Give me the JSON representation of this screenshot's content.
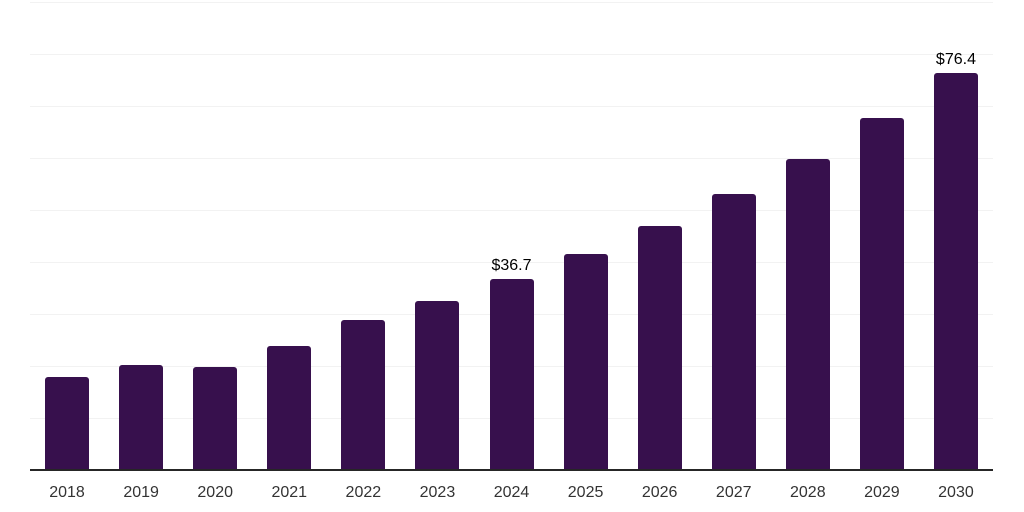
{
  "chart_data": {
    "type": "bar",
    "title": "",
    "xlabel": "",
    "ylabel": "",
    "categories": [
      "2018",
      "2019",
      "2020",
      "2021",
      "2022",
      "2023",
      "2024",
      "2025",
      "2026",
      "2027",
      "2028",
      "2029",
      "2030"
    ],
    "values": [
      17.8,
      20.2,
      19.9,
      23.9,
      28.9,
      32.5,
      36.7,
      41.5,
      46.9,
      53.0,
      59.9,
      67.7,
      76.4
    ],
    "value_labels": [
      {
        "category": "2024",
        "text": "$36.7"
      },
      {
        "category": "2030",
        "text": "$76.4"
      }
    ],
    "ylim": [
      0,
      90
    ],
    "grid_step": 10,
    "grid": "horizontal",
    "legend_position": "none",
    "y_tick_labels_visible": false,
    "colors": {
      "bar": "#37104D",
      "axis": "#262626",
      "gridline": "#f2f2f2",
      "x_label": "#333333",
      "value_label": "#000000",
      "background": "#ffffff"
    }
  }
}
